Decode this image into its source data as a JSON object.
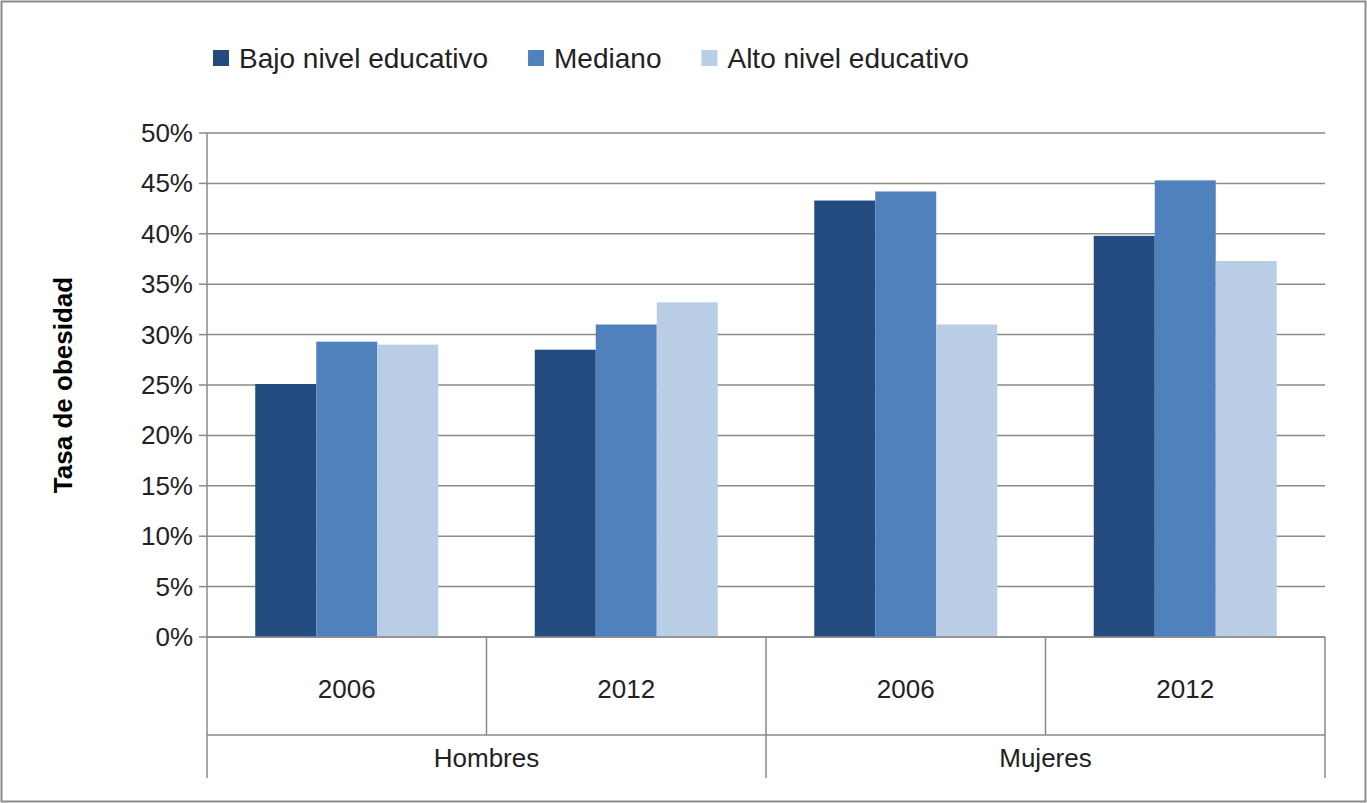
{
  "chart_data": {
    "type": "bar",
    "y_label": "Tasa de obesidad",
    "categories": [
      "2006",
      "2012",
      "2006",
      "2012"
    ],
    "groups": [
      "Hombres",
      "Hombres",
      "Mujeres",
      "Mujeres"
    ],
    "series": [
      {
        "name": "Bajo nivel educativo",
        "color": "#234b80",
        "values": [
          25.1,
          28.5,
          43.3,
          39.8
        ]
      },
      {
        "name": "Mediano",
        "color": "#4f81bd",
        "values": [
          29.3,
          31.0,
          44.2,
          45.3
        ]
      },
      {
        "name": "Alto nivel educativo",
        "color": "#b9cde5",
        "values": [
          29.0,
          33.2,
          31.0,
          37.3
        ]
      }
    ],
    "ylim": [
      0,
      50
    ],
    "yticks": [
      {
        "value": 0,
        "label": "0%"
      },
      {
        "value": 5,
        "label": "5%"
      },
      {
        "value": 10,
        "label": "10%"
      },
      {
        "value": 15,
        "label": "15%"
      },
      {
        "value": 20,
        "label": "20%"
      },
      {
        "value": 25,
        "label": "25%"
      },
      {
        "value": 30,
        "label": "30%"
      },
      {
        "value": 35,
        "label": "35%"
      },
      {
        "value": 40,
        "label": "40%"
      },
      {
        "value": 45,
        "label": "45%"
      },
      {
        "value": 50,
        "label": "50%"
      }
    ],
    "grid": true,
    "legend": "top"
  }
}
